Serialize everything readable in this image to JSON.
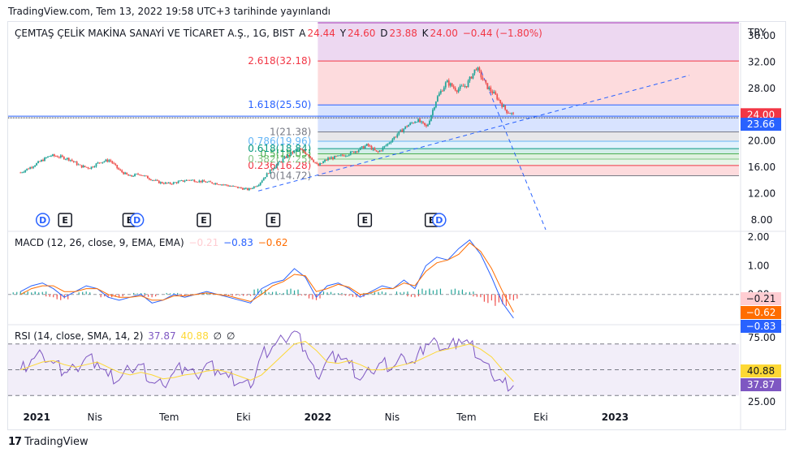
{
  "published": "TradingView.com, Tem 13, 2022 19:58 UTC+3 tarihinde yayınlandı",
  "currency": "TRY",
  "main_legend": {
    "symbol": "ÇEMTAŞ ÇELİK MAKİNA SANAYİ VE TİCARET A.Ş., 1G, BIST",
    "o_label": "A",
    "o": "24.44",
    "h_label": "Y",
    "h": "24.60",
    "l_label": "D",
    "l": "23.88",
    "c_label": "K",
    "c": "24.00",
    "change": "−0.44 (−1.80%)"
  },
  "macd_legend": {
    "title": "MACD (12, 26, close, 9, EMA, EMA)",
    "hist": "−0.21",
    "macd": "−0.83",
    "signal": "−0.62"
  },
  "rsi_legend": {
    "title": "RSI (14, close, SMA, 14, 2)",
    "rsi": "37.87",
    "ma": "40.88",
    "extra1": "∅",
    "extra2": "∅"
  },
  "brand": "TradingView",
  "colors": {
    "up": "#26a69a",
    "down": "#ef5350",
    "macd": "#2962ff",
    "signal": "#ff6d00",
    "rsi": "#7e57c2",
    "rsi_ma": "#fdd835"
  },
  "chart_data": [
    {
      "type": "candlestick",
      "title": "ÇEMTAŞ ÇELİK MAKİNA SANAYİ VE TİCARET A.Ş., 1G, BIST",
      "y_ticks": [
        "8.00",
        "12.00",
        "16.00",
        "20.00",
        "24.00",
        "28.00",
        "32.00",
        "36.00"
      ],
      "ylim": [
        6.5,
        38
      ],
      "x_ticks": [
        "2021",
        "Nis",
        "Tem",
        "Eki",
        "2022",
        "Nis",
        "Tem",
        "Eki",
        "2023"
      ],
      "price_labels": [
        {
          "value": "24.00",
          "color": "#f23645"
        },
        {
          "value": "23.66",
          "color": "#2962ff"
        }
      ],
      "close_series": [
        {
          "t": 0,
          "v": 15.2
        },
        {
          "t": 0.4,
          "v": 16.0
        },
        {
          "t": 0.8,
          "v": 16.9
        },
        {
          "t": 1.2,
          "v": 17.8
        },
        {
          "t": 1.6,
          "v": 17.6
        },
        {
          "t": 2.0,
          "v": 17.2
        },
        {
          "t": 2.4,
          "v": 16.2
        },
        {
          "t": 2.8,
          "v": 15.9
        },
        {
          "t": 3.2,
          "v": 16.8
        },
        {
          "t": 3.6,
          "v": 17.1
        },
        {
          "t": 4.0,
          "v": 15.5
        },
        {
          "t": 4.4,
          "v": 14.6
        },
        {
          "t": 4.8,
          "v": 15.0
        },
        {
          "t": 5.2,
          "v": 14.3
        },
        {
          "t": 5.6,
          "v": 13.7
        },
        {
          "t": 6.0,
          "v": 13.5
        },
        {
          "t": 6.4,
          "v": 13.8
        },
        {
          "t": 6.8,
          "v": 14.1
        },
        {
          "t": 7.2,
          "v": 13.9
        },
        {
          "t": 7.6,
          "v": 13.7
        },
        {
          "t": 8.0,
          "v": 13.5
        },
        {
          "t": 8.4,
          "v": 13.2
        },
        {
          "t": 8.8,
          "v": 12.9
        },
        {
          "t": 9.2,
          "v": 12.6
        },
        {
          "t": 9.6,
          "v": 13.4
        },
        {
          "t": 10.0,
          "v": 15.2
        },
        {
          "t": 10.4,
          "v": 16.6
        },
        {
          "t": 10.8,
          "v": 17.8
        },
        {
          "t": 11.2,
          "v": 18.8
        },
        {
          "t": 11.6,
          "v": 18.0
        },
        {
          "t": 12.0,
          "v": 16.2
        },
        {
          "t": 12.4,
          "v": 17.3
        },
        {
          "t": 12.8,
          "v": 17.6
        },
        {
          "t": 13.2,
          "v": 18.0
        },
        {
          "t": 13.6,
          "v": 18.6
        },
        {
          "t": 14.0,
          "v": 19.4
        },
        {
          "t": 14.4,
          "v": 18.2
        },
        {
          "t": 14.8,
          "v": 19.5
        },
        {
          "t": 15.2,
          "v": 21.0
        },
        {
          "t": 15.6,
          "v": 22.3
        },
        {
          "t": 16.0,
          "v": 23.2
        },
        {
          "t": 16.4,
          "v": 22.1
        },
        {
          "t": 16.8,
          "v": 26.5
        },
        {
          "t": 17.2,
          "v": 29.0
        },
        {
          "t": 17.6,
          "v": 27.8
        },
        {
          "t": 18.0,
          "v": 28.5
        },
        {
          "t": 18.4,
          "v": 31.2
        },
        {
          "t": 18.8,
          "v": 28.4
        },
        {
          "t": 19.2,
          "v": 26.8
        },
        {
          "t": 19.6,
          "v": 24.6
        },
        {
          "t": 19.9,
          "v": 24.0
        }
      ],
      "x_tick_time": [
        0,
        3,
        6,
        9,
        12,
        15,
        18,
        21,
        24
      ],
      "fibonacci": [
        {
          "level": "0(14.72)",
          "value": 14.72,
          "line": "#787b86"
        },
        {
          "level": "0.236(16.28)",
          "value": 16.28,
          "line": "#f23645"
        },
        {
          "level": "0.382(17.25)",
          "value": 17.25,
          "line": "#81c784"
        },
        {
          "level": "0.5(18.05)",
          "value": 18.05,
          "line": "#4caf50"
        },
        {
          "level": "0.618(18.84)",
          "value": 18.84,
          "line": "#089981"
        },
        {
          "level": "0.786(19.96)",
          "value": 19.96,
          "line": "#64b5f6"
        },
        {
          "level": "1(21.38)",
          "value": 21.38,
          "line": "#787b86"
        },
        {
          "level": "1.618(25.50)",
          "value": 25.5,
          "line": "#2962ff"
        },
        {
          "level": "2.618(32.18)",
          "value": 32.18,
          "line": "#f23645"
        },
        {
          "level": "",
          "value": 38.0,
          "line": "#9c27b0"
        }
      ],
      "fib_bands": [
        {
          "from": 14.72,
          "to": 16.28,
          "color": "#f23645"
        },
        {
          "from": 16.28,
          "to": 17.25,
          "color": "#81c784"
        },
        {
          "from": 17.25,
          "to": 18.05,
          "color": "#4caf50"
        },
        {
          "from": 18.05,
          "to": 18.84,
          "color": "#089981"
        },
        {
          "from": 18.84,
          "to": 19.96,
          "color": "#64b5f6"
        },
        {
          "from": 19.96,
          "to": 21.38,
          "color": "#787b86"
        },
        {
          "from": 21.38,
          "to": 25.5,
          "color": "#2962ff"
        },
        {
          "from": 25.5,
          "to": 32.18,
          "color": "#f23645"
        },
        {
          "from": 32.18,
          "to": 38.0,
          "color": "#9c27b0"
        }
      ],
      "fib_start_time": 12.0,
      "horizontal_line": 23.66,
      "trend_lines": [
        {
          "t1": 9.6,
          "v1": 12.4,
          "t2": 27.0,
          "v2": 30.0
        },
        {
          "t1": 18.6,
          "v1": 30.6,
          "t2": 21.2,
          "v2": 6.5
        }
      ],
      "events": [
        {
          "t": 0.9,
          "kind": "D"
        },
        {
          "t": 1.8,
          "kind": "E"
        },
        {
          "t": 4.4,
          "kind": "E"
        },
        {
          "t": 4.7,
          "kind": "D"
        },
        {
          "t": 7.4,
          "kind": "E"
        },
        {
          "t": 10.2,
          "kind": "E"
        },
        {
          "t": 13.9,
          "kind": "E"
        },
        {
          "t": 16.6,
          "kind": "E"
        },
        {
          "t": 16.9,
          "kind": "D"
        }
      ]
    },
    {
      "type": "line",
      "title": "MACD (12, 26, close, 9, EMA, EMA)",
      "y_ticks": [
        "2.00",
        "1.00",
        "0.00"
      ],
      "ylim": [
        -1.0,
        2.2
      ],
      "series": [
        {
          "name": "MACD",
          "color": "#2962ff",
          "values": [
            0.1,
            0.3,
            0.4,
            0.2,
            -0.1,
            0.1,
            0.3,
            0.2,
            -0.1,
            -0.2,
            -0.1,
            0.0,
            -0.3,
            -0.2,
            0.0,
            -0.1,
            0.0,
            0.1,
            0.0,
            -0.1,
            -0.2,
            -0.3,
            0.2,
            0.4,
            0.5,
            0.9,
            0.6,
            -0.1,
            0.3,
            0.4,
            0.2,
            -0.1,
            0.1,
            0.3,
            0.2,
            0.5,
            0.2,
            1.0,
            1.3,
            1.2,
            1.6,
            1.9,
            1.4,
            0.6,
            -0.3,
            -0.83
          ]
        },
        {
          "name": "Signal",
          "color": "#ff6d00",
          "values": [
            0.0,
            0.2,
            0.3,
            0.3,
            0.1,
            0.1,
            0.2,
            0.2,
            0.0,
            -0.1,
            -0.1,
            -0.05,
            -0.2,
            -0.2,
            -0.05,
            -0.05,
            0.0,
            0.05,
            0.0,
            -0.05,
            -0.15,
            -0.25,
            0.0,
            0.3,
            0.45,
            0.7,
            0.65,
            0.1,
            0.2,
            0.35,
            0.25,
            0.0,
            0.05,
            0.2,
            0.2,
            0.4,
            0.3,
            0.8,
            1.1,
            1.2,
            1.4,
            1.8,
            1.5,
            0.9,
            0.1,
            -0.62
          ]
        },
        {
          "name": "Histogram",
          "color": "#26a69a",
          "values": [
            0.1,
            0.1,
            0.1,
            -0.1,
            -0.2,
            0.0,
            0.1,
            0.0,
            -0.1,
            -0.1,
            0.0,
            0.05,
            -0.1,
            0.0,
            0.05,
            -0.05,
            0.0,
            0.05,
            0.0,
            -0.05,
            -0.05,
            -0.05,
            0.2,
            0.1,
            0.05,
            0.2,
            -0.05,
            -0.2,
            0.1,
            0.05,
            -0.05,
            -0.1,
            0.05,
            0.1,
            0.0,
            0.1,
            -0.1,
            0.2,
            0.2,
            0.0,
            0.2,
            0.1,
            -0.1,
            -0.3,
            -0.4,
            -0.21
          ]
        }
      ],
      "value_labels": [
        {
          "value": "−0.21",
          "bg": "#ffcdd2",
          "fg": "#131722"
        },
        {
          "value": "−0.62",
          "bg": "#ff6d00",
          "fg": "#ffffff"
        },
        {
          "value": "−0.83",
          "bg": "#2962ff",
          "fg": "#ffffff"
        }
      ]
    },
    {
      "type": "line",
      "title": "RSI (14, close, SMA, 14, 2)",
      "y_ticks": [
        "75.00",
        "25.00"
      ],
      "ylim": [
        22,
        85
      ],
      "bands": {
        "upper": 70,
        "middle": 50,
        "lower": 30
      },
      "series": [
        {
          "name": "RSI",
          "color": "#7e57c2",
          "values": [
            50,
            58,
            62,
            55,
            48,
            52,
            60,
            56,
            45,
            42,
            50,
            54,
            40,
            38,
            48,
            52,
            46,
            55,
            50,
            44,
            40,
            36,
            62,
            68,
            74,
            80,
            65,
            45,
            58,
            62,
            55,
            42,
            48,
            56,
            52,
            60,
            55,
            70,
            72,
            66,
            74,
            70,
            58,
            46,
            40,
            37.87
          ]
        },
        {
          "name": "RSI MA",
          "color": "#fdd835",
          "values": [
            50,
            53,
            56,
            57,
            54,
            52,
            54,
            56,
            52,
            48,
            46,
            48,
            46,
            43,
            44,
            46,
            47,
            49,
            50,
            48,
            45,
            42,
            46,
            54,
            62,
            70,
            72,
            65,
            56,
            55,
            57,
            54,
            50,
            50,
            52,
            54,
            56,
            60,
            64,
            66,
            68,
            70,
            66,
            60,
            50,
            40.88
          ]
        }
      ],
      "value_labels": [
        {
          "value": "40.88",
          "bg": "#fdd835",
          "fg": "#131722"
        },
        {
          "value": "37.87",
          "bg": "#7e57c2",
          "fg": "#ffffff"
        }
      ]
    }
  ]
}
